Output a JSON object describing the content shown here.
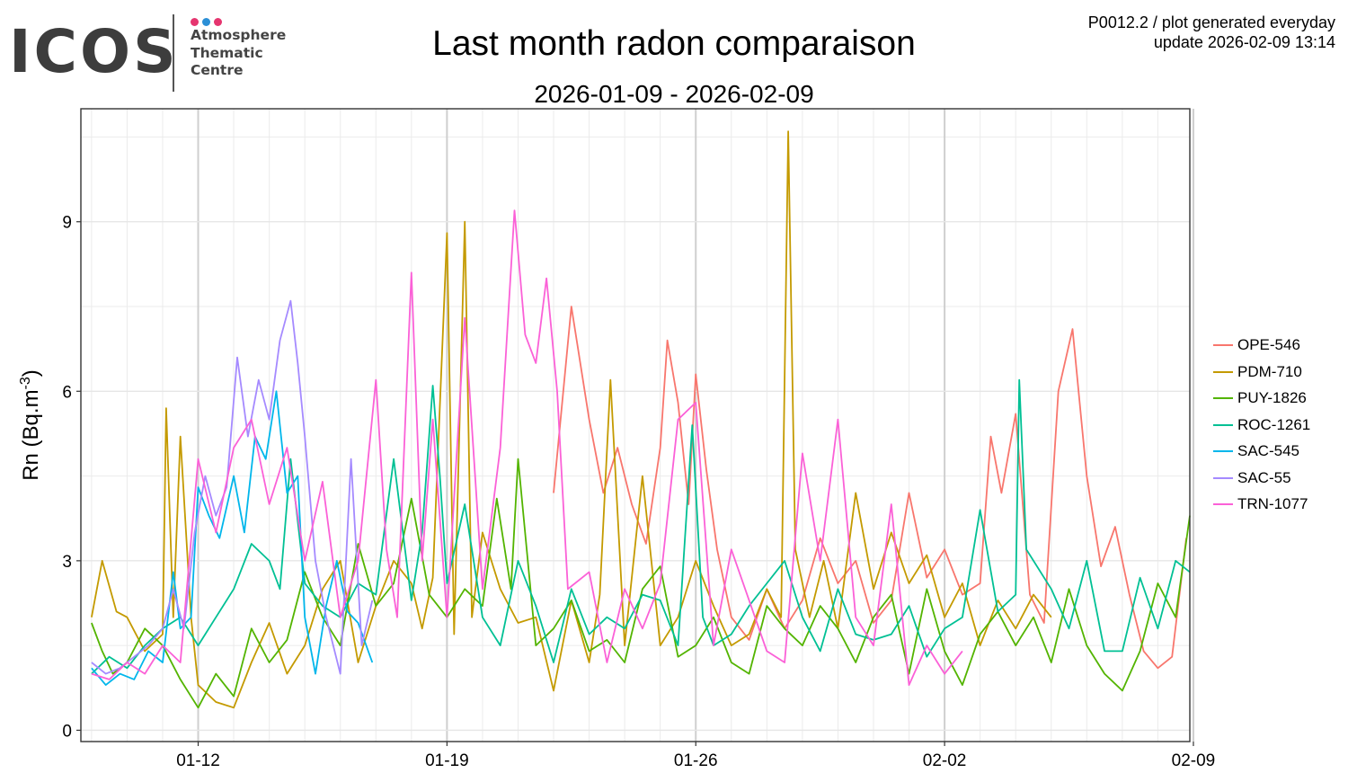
{
  "logo": {
    "wordmark": "ICOS",
    "line1": "Atmosphere",
    "line2": "Thematic",
    "line3": "Centre",
    "dot_colors": [
      "#e5356f",
      "#2b8fd6",
      "#e5356f"
    ]
  },
  "header": {
    "product_line": "P0012.2 / plot generated everyday",
    "update_line": "update  2026-02-09 13:14"
  },
  "chart_data": {
    "type": "line",
    "title": "Last month radon comparaison",
    "subtitle": "2026-01-09 - 2026-02-09",
    "ylabel": "Rn (Bq.m",
    "ylabel_sup": "-3",
    "ylabel_end": ")",
    "xlabel": "",
    "x_unit": "day of period (0 = 2026-01-09 00:00)",
    "xlim": [
      -0.3,
      30.9
    ],
    "ylim": [
      -0.2,
      11.0
    ],
    "x_ticks": [
      {
        "value": 3,
        "label": "01-12"
      },
      {
        "value": 10,
        "label": "01-19"
      },
      {
        "value": 17,
        "label": "01-26"
      },
      {
        "value": 24,
        "label": "02-02"
      },
      {
        "value": 31,
        "label": "02-09"
      }
    ],
    "y_ticks": [
      {
        "value": 0,
        "label": "0"
      },
      {
        "value": 3,
        "label": "3"
      },
      {
        "value": 6,
        "label": "6"
      },
      {
        "value": 9,
        "label": "9"
      }
    ],
    "grid": true,
    "legend_position": "right",
    "series": [
      {
        "name": "OPE-546",
        "color": "#f8766d",
        "x": [
          13.0,
          13.5,
          14.0,
          14.4,
          14.8,
          15.2,
          15.6,
          16.0,
          16.2,
          16.5,
          16.8,
          17.0,
          17.3,
          17.6,
          18.0,
          18.5,
          19.0,
          19.5,
          20.0,
          20.5,
          21.0,
          21.5,
          22.0,
          22.5,
          23.0,
          23.5,
          24.0,
          24.5,
          25.0,
          25.3,
          25.6,
          26.0,
          26.4,
          26.8,
          27.2,
          27.6,
          28.0,
          28.4,
          28.8,
          29.2,
          29.6,
          30.0,
          30.4,
          30.8
        ],
        "y": [
          4.2,
          7.5,
          5.5,
          4.2,
          5.0,
          4.0,
          3.3,
          5.0,
          6.9,
          5.8,
          4.0,
          6.3,
          4.6,
          3.2,
          2.0,
          1.6,
          2.5,
          1.8,
          2.3,
          3.4,
          2.6,
          3.0,
          1.9,
          2.3,
          4.2,
          2.7,
          3.2,
          2.4,
          2.6,
          5.2,
          4.2,
          5.6,
          2.4,
          1.9,
          6.0,
          7.1,
          4.5,
          2.9,
          3.6,
          2.4,
          1.4,
          1.1,
          1.3,
          3.4
        ]
      },
      {
        "name": "PDM-710",
        "color": "#c49a00",
        "x": [
          0.0,
          0.3,
          0.7,
          1.0,
          1.5,
          2.0,
          2.1,
          2.3,
          2.5,
          2.8,
          3.0,
          3.5,
          4.0,
          4.5,
          5.0,
          5.5,
          6.0,
          6.5,
          7.0,
          7.5,
          8.0,
          8.5,
          9.0,
          9.3,
          9.6,
          10.0,
          10.2,
          10.5,
          10.7,
          11.0,
          11.5,
          12.0,
          12.5,
          13.0,
          13.5,
          14.0,
          14.3,
          14.6,
          15.0,
          15.5,
          16.0,
          16.5,
          17.0,
          17.5,
          18.0,
          18.5,
          19.0,
          19.4,
          19.6,
          19.8,
          20.2,
          20.6,
          21.0,
          21.5,
          22.0,
          22.5,
          23.0,
          23.5,
          24.0,
          24.5,
          25.0,
          25.5,
          26.0,
          26.5,
          27.0
        ],
        "y": [
          2.0,
          3.0,
          2.1,
          2.0,
          1.4,
          1.7,
          5.7,
          2.0,
          5.2,
          2.0,
          0.8,
          0.5,
          0.4,
          1.2,
          1.9,
          1.0,
          1.5,
          2.5,
          3.0,
          1.2,
          2.2,
          3.0,
          2.6,
          1.8,
          2.7,
          8.8,
          1.7,
          9.0,
          2.0,
          3.5,
          2.5,
          1.9,
          2.0,
          0.7,
          2.3,
          1.2,
          2.4,
          6.2,
          1.5,
          4.5,
          1.5,
          2.0,
          3.0,
          2.2,
          1.5,
          1.7,
          2.5,
          2.0,
          10.6,
          3.2,
          2.0,
          3.0,
          1.8,
          4.2,
          2.5,
          3.5,
          2.6,
          3.1,
          2.0,
          2.6,
          1.5,
          2.3,
          1.8,
          2.4,
          2.0
        ]
      },
      {
        "name": "PUY-1826",
        "color": "#53b400",
        "x": [
          0.0,
          0.3,
          0.6,
          1.0,
          1.5,
          2.0,
          2.5,
          3.0,
          3.5,
          4.0,
          4.5,
          5.0,
          5.5,
          6.0,
          6.5,
          7.0,
          7.5,
          8.0,
          8.5,
          9.0,
          9.5,
          10.0,
          10.5,
          11.0,
          11.4,
          11.8,
          12.0,
          12.5,
          13.0,
          13.5,
          14.0,
          14.5,
          15.0,
          15.5,
          16.0,
          16.5,
          17.0,
          17.5,
          18.0,
          18.5,
          19.0,
          19.5,
          20.0,
          20.5,
          21.0,
          21.5,
          22.0,
          22.5,
          23.0,
          23.5,
          24.0,
          24.5,
          25.0,
          25.5,
          26.0,
          26.5,
          27.0,
          27.5,
          28.0,
          28.5,
          29.0,
          29.5,
          30.0,
          30.5,
          30.9
        ],
        "y": [
          1.9,
          1.4,
          1.0,
          1.2,
          1.8,
          1.5,
          0.9,
          0.4,
          1.0,
          0.6,
          1.8,
          1.2,
          1.6,
          2.8,
          2.0,
          1.5,
          3.3,
          2.2,
          2.6,
          4.1,
          2.4,
          2.0,
          2.5,
          2.2,
          4.1,
          2.5,
          4.8,
          1.5,
          1.8,
          2.3,
          1.4,
          1.6,
          1.2,
          2.5,
          2.9,
          1.3,
          1.5,
          2.0,
          1.2,
          1.0,
          2.2,
          1.8,
          1.5,
          2.2,
          1.8,
          1.2,
          2.0,
          2.4,
          1.0,
          2.5,
          1.4,
          0.8,
          1.7,
          2.1,
          1.5,
          2.0,
          1.2,
          2.5,
          1.5,
          1.0,
          0.7,
          1.4,
          2.6,
          2.0,
          3.8
        ]
      },
      {
        "name": "ROC-1261",
        "color": "#00c094",
        "x": [
          0.0,
          0.5,
          1.0,
          1.5,
          2.0,
          2.5,
          3.0,
          3.5,
          4.0,
          4.5,
          5.0,
          5.3,
          5.6,
          6.0,
          6.5,
          7.0,
          7.5,
          8.0,
          8.5,
          9.0,
          9.3,
          9.6,
          9.8,
          10.0,
          10.5,
          11.0,
          11.5,
          12.0,
          12.5,
          13.0,
          13.5,
          14.0,
          14.5,
          15.0,
          15.5,
          16.0,
          16.5,
          16.9,
          17.2,
          17.5,
          18.0,
          18.5,
          19.0,
          19.5,
          20.0,
          20.5,
          21.0,
          21.5,
          22.0,
          22.5,
          23.0,
          23.5,
          24.0,
          24.5,
          25.0,
          25.5,
          26.0,
          26.1,
          26.3,
          27.0,
          27.5,
          28.0,
          28.5,
          29.0,
          29.5,
          30.0,
          30.5,
          30.9
        ],
        "y": [
          1.0,
          1.3,
          1.1,
          1.5,
          1.8,
          2.0,
          1.5,
          2.0,
          2.5,
          3.3,
          3.0,
          2.5,
          4.8,
          2.6,
          2.2,
          2.0,
          2.6,
          2.4,
          4.8,
          2.3,
          3.5,
          6.1,
          4.5,
          2.6,
          4.0,
          2.0,
          1.5,
          3.0,
          2.2,
          1.2,
          2.5,
          1.7,
          2.0,
          1.8,
          2.4,
          2.3,
          1.5,
          5.4,
          2.0,
          1.5,
          1.7,
          2.2,
          2.6,
          3.0,
          2.0,
          1.4,
          2.5,
          1.7,
          1.6,
          1.7,
          2.2,
          1.3,
          1.8,
          2.0,
          3.9,
          2.1,
          2.4,
          6.2,
          3.2,
          2.5,
          1.8,
          3.0,
          1.4,
          1.4,
          2.7,
          1.8,
          3.0,
          2.8
        ]
      },
      {
        "name": "SAC-545",
        "color": "#00b6eb",
        "x": [
          0.0,
          0.4,
          0.8,
          1.2,
          1.6,
          2.0,
          2.3,
          2.5,
          2.8,
          3.0,
          3.3,
          3.6,
          4.0,
          4.3,
          4.6,
          4.9,
          5.2,
          5.5,
          5.8,
          6.0,
          6.3,
          6.6,
          6.9,
          7.2,
          7.5,
          7.9
        ],
        "y": [
          1.1,
          0.8,
          1.0,
          0.9,
          1.4,
          1.2,
          2.8,
          1.8,
          2.0,
          4.3,
          3.8,
          3.4,
          4.5,
          3.5,
          5.2,
          4.8,
          6.0,
          4.2,
          4.5,
          2.0,
          1.0,
          2.2,
          3.0,
          2.1,
          1.9,
          1.2
        ]
      },
      {
        "name": "SAC-55",
        "color": "#a58aff",
        "x": [
          0.0,
          0.4,
          0.8,
          1.2,
          1.6,
          2.0,
          2.3,
          2.6,
          2.9,
          3.2,
          3.5,
          3.8,
          4.1,
          4.4,
          4.7,
          5.0,
          5.3,
          5.6,
          5.8,
          6.0,
          6.3,
          6.6,
          7.0,
          7.3,
          7.6,
          7.9
        ],
        "y": [
          1.2,
          1.0,
          1.1,
          1.3,
          1.5,
          1.8,
          2.5,
          1.8,
          3.5,
          4.5,
          3.8,
          4.3,
          6.6,
          5.2,
          6.2,
          5.5,
          6.9,
          7.6,
          6.5,
          5.2,
          3.0,
          2.0,
          1.0,
          4.8,
          1.5,
          2.3
        ]
      },
      {
        "name": "TRN-1077",
        "color": "#fb61d7",
        "x": [
          0.0,
          0.5,
          1.0,
          1.5,
          2.0,
          2.5,
          3.0,
          3.5,
          4.0,
          4.5,
          5.0,
          5.5,
          6.0,
          6.5,
          7.0,
          7.5,
          8.0,
          8.3,
          8.6,
          9.0,
          9.3,
          9.6,
          10.0,
          10.5,
          11.0,
          11.5,
          11.9,
          12.2,
          12.5,
          12.8,
          13.1,
          13.4,
          14.0,
          14.5,
          15.0,
          15.5,
          16.0,
          16.5,
          17.0,
          17.5,
          18.0,
          18.5,
          19.0,
          19.5,
          20.0,
          20.5,
          21.0,
          21.5,
          22.0,
          22.5,
          23.0,
          23.5,
          24.0,
          24.5
        ],
        "y": [
          1.0,
          0.9,
          1.2,
          1.0,
          1.5,
          1.2,
          4.8,
          3.5,
          5.0,
          5.5,
          4.0,
          5.0,
          3.0,
          4.4,
          2.0,
          3.0,
          6.2,
          3.2,
          2.0,
          8.1,
          3.0,
          5.5,
          2.0,
          7.3,
          2.5,
          5.0,
          9.2,
          7.0,
          6.5,
          8.0,
          6.0,
          2.5,
          2.8,
          1.2,
          2.5,
          1.8,
          2.6,
          5.5,
          5.8,
          1.5,
          3.2,
          2.3,
          1.4,
          1.2,
          4.9,
          3.0,
          5.5,
          2.0,
          1.5,
          4.0,
          0.8,
          1.5,
          1.0,
          1.4
        ]
      }
    ]
  }
}
